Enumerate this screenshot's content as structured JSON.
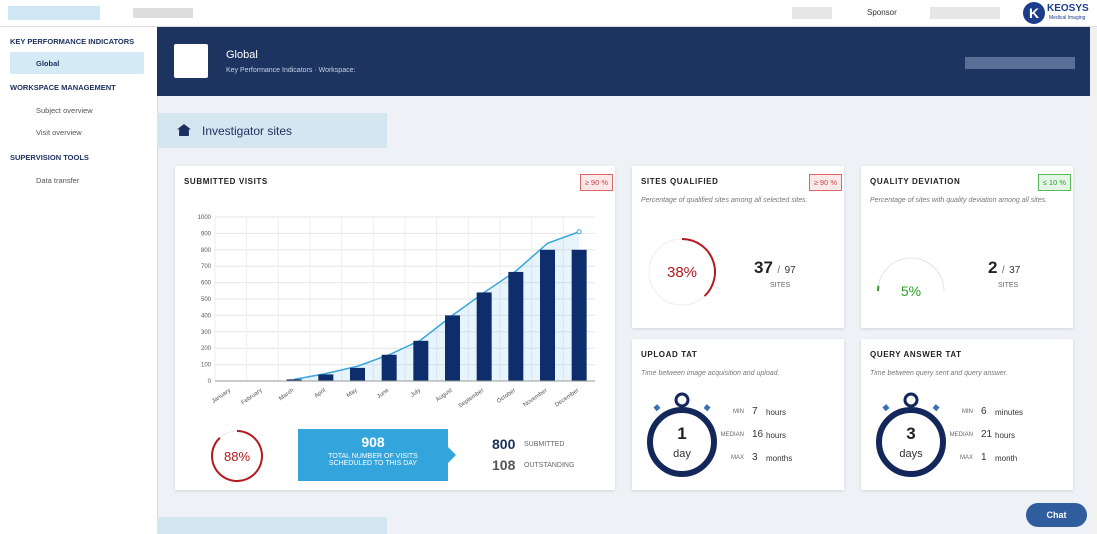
{
  "topbar": {
    "role": "Sponsor",
    "logo": "KEOSYS",
    "logo_sub": "Medical Imaging"
  },
  "sidebar": {
    "sections": [
      {
        "title": "KEY PERFORMANCE INDICATORS",
        "items": [
          "Global"
        ]
      },
      {
        "title": "WORKSPACE MANAGEMENT",
        "items": [
          "Subject overview",
          "Visit overview"
        ]
      },
      {
        "title": "SUPERVISION TOOLS",
        "items": [
          "Data transfer"
        ]
      }
    ]
  },
  "header": {
    "title": "Global",
    "subtitle": "Key Performance Indicators · Workspace:"
  },
  "section": {
    "title": "Investigator sites"
  },
  "submitted_visits": {
    "title": "SUBMITTED VISITS",
    "badge": "≥ 90 %",
    "chart_data": {
      "type": "bar",
      "categories": [
        "January",
        "February",
        "March",
        "April",
        "May",
        "June",
        "July",
        "August",
        "September",
        "October",
        "November",
        "December"
      ],
      "series": [
        {
          "type": "bar",
          "color": "#0d2d6c",
          "values": [
            0,
            0,
            10,
            40,
            80,
            160,
            245,
            400,
            540,
            665,
            800,
            800
          ]
        },
        {
          "type": "line",
          "color": "#3aa6dc",
          "values": [
            null,
            null,
            10,
            45,
            90,
            160,
            250,
            400,
            540,
            670,
            840,
            910
          ]
        }
      ],
      "ylim": [
        0,
        1000
      ],
      "yticks": [
        0,
        100,
        200,
        300,
        400,
        500,
        600,
        700,
        800,
        900,
        1000
      ],
      "grid": true
    },
    "percent": {
      "value": 88,
      "label": "88%"
    },
    "total": 908,
    "total_label": "TOTAL NUMBER OF VISITS SCHEDULED TO THIS DAY",
    "submitted": 800,
    "submitted_label": "SUBMITTED",
    "outstanding": 108,
    "outstanding_label": "OUTSTANDING"
  },
  "sites_qualified": {
    "title": "SITES QUALIFIED",
    "badge": "≥ 90 %",
    "description": "Percentage of qualified sites among all selected sites.",
    "percent": {
      "value": 38,
      "label": "38%"
    },
    "count": 37,
    "separator": "/",
    "total": 97,
    "unit": "SITES"
  },
  "quality_deviation": {
    "title": "QUALITY DEVIATION",
    "badge": "≤ 10 %",
    "description": "Percentage of sites with quality deviation among all sites.",
    "percent": {
      "value": 5,
      "label": "5%"
    },
    "count": 2,
    "separator": "/",
    "total": 37,
    "unit": "SITES"
  },
  "upload_tat": {
    "title": "UPLOAD TAT",
    "description": "Time between image acquisition and upload.",
    "value": 1,
    "unit": "day",
    "stats": [
      {
        "label": "MIN",
        "value": 7,
        "unit": "hours"
      },
      {
        "label": "MEDIAN",
        "value": 16,
        "unit": "hours"
      },
      {
        "label": "MAX",
        "value": 3,
        "unit": "months"
      }
    ]
  },
  "query_answer_tat": {
    "title": "QUERY ANSWER TAT",
    "description": "Time between query sent and query answer.",
    "value": 3,
    "unit": "days",
    "stats": [
      {
        "label": "MIN",
        "value": 6,
        "unit": "minutes"
      },
      {
        "label": "MEDIAN",
        "value": 21,
        "unit": "hours"
      },
      {
        "label": "MAX",
        "value": 1,
        "unit": "month"
      }
    ]
  },
  "chat": {
    "label": "Chat"
  }
}
